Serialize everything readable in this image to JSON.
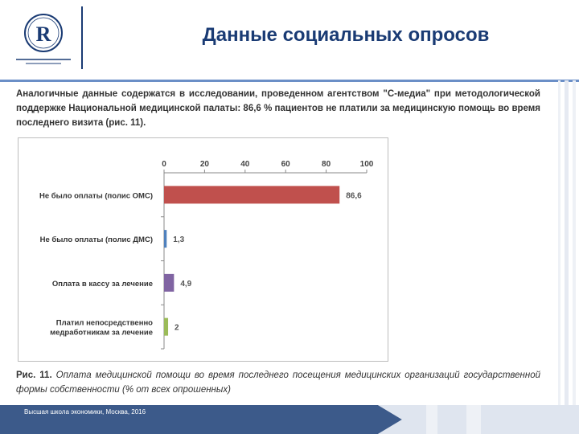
{
  "slide": {
    "title": "Данные социальных опросов",
    "intro": "Аналогичные данные содержатся в исследовании, проведенном агентством \"С-медиа\" при методологической поддержке Национальной медицинской палаты: 86,6 % пациентов не платили за медицинскую помощь во время последнего визита (рис. 11).",
    "caption_lead": "Рис. 11.",
    "caption_body": "Оплата медицинской помощи во время последнего посещения медицинских организаций государственной формы собственности (% от всех опрошенных)",
    "footer": "Высшая школа экономики, Москва, 2016"
  },
  "colors": {
    "brand": "#1a3b74",
    "accent_line": "#6b8fc7",
    "footer_band": "#3c5a8a"
  },
  "chart_data": {
    "type": "bar",
    "orientation": "horizontal",
    "categories": [
      "Не было оплаты (полис ОМС)",
      "Не было оплаты (полис ДМС)",
      "Оплата в кассу за лечение",
      "Платил непосредственно медработникам за лечение"
    ],
    "category_lines": [
      [
        "Не было оплаты (полис ОМС)"
      ],
      [
        "Не было оплаты (полис ДМС)"
      ],
      [
        "Оплата в кассу за лечение"
      ],
      [
        "Платил непосредственно",
        "медработникам за лечение"
      ]
    ],
    "values": [
      86.6,
      1.3,
      4.9,
      2
    ],
    "value_labels": [
      "86,6",
      "1,3",
      "4,9",
      "2"
    ],
    "bar_colors": [
      "#c0504d",
      "#4f81bd",
      "#8064a2",
      "#9bbb59"
    ],
    "xlim": [
      0,
      100
    ],
    "xticks": [
      0,
      20,
      40,
      60,
      80,
      100
    ],
    "axis_position": "top",
    "grid": false,
    "legend": false
  }
}
